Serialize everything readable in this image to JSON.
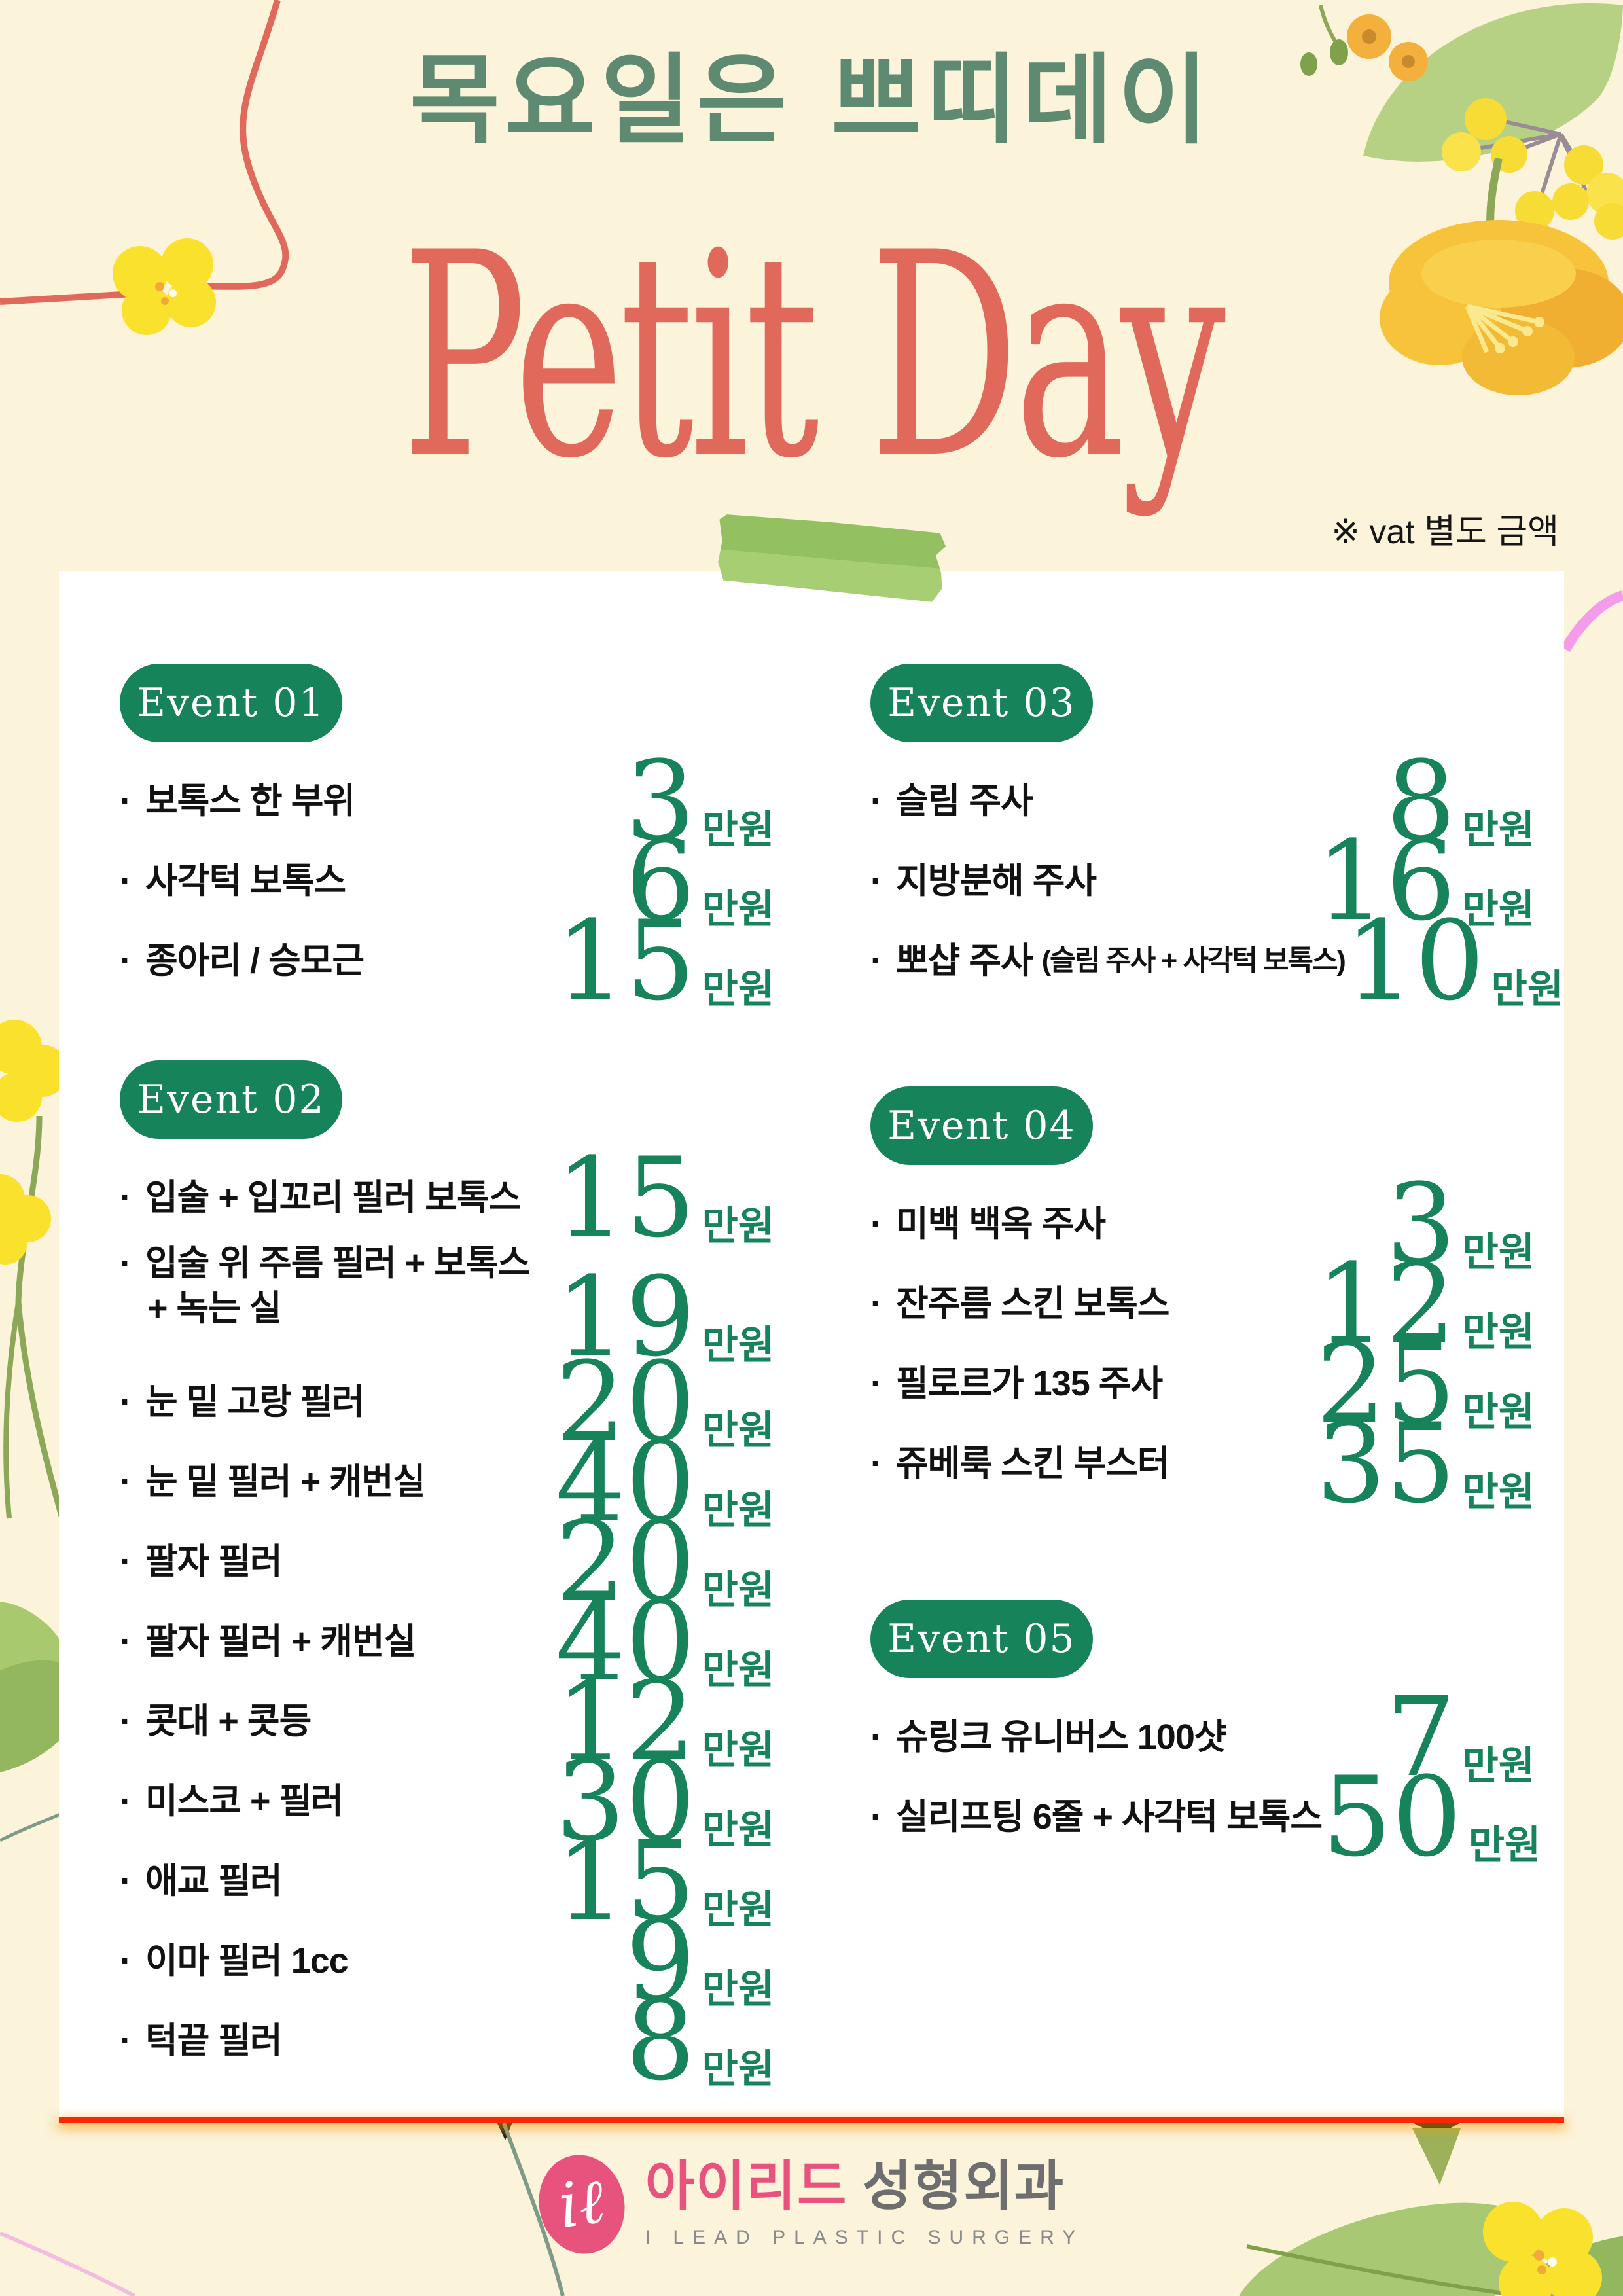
{
  "poster": {
    "title_kr": "목요일은 쁘띠데이",
    "title_en": "Petit Day",
    "vat_note": "※ vat 별도 금액",
    "unit": "만원"
  },
  "sections": [
    {
      "id": "event-01",
      "label": "Event 01",
      "column": "left",
      "items": [
        {
          "name": "보톡스 한 부위",
          "price": "3"
        },
        {
          "name": "사각턱 보톡스",
          "price": "6"
        },
        {
          "name": "종아리 / 승모근",
          "price": "15"
        }
      ]
    },
    {
      "id": "event-02",
      "label": "Event 02",
      "column": "left",
      "items": [
        {
          "name": "입술 + 입꼬리 필러 보톡스",
          "price": "15"
        },
        {
          "name": "입술 위 주름 필러 + 보톡스",
          "name2": "+ 녹는 실",
          "price": "19"
        },
        {
          "name": "눈 밑 고랑 필러",
          "price": "20"
        },
        {
          "name": "눈 밑 필러 + 캐번실",
          "price": "40"
        },
        {
          "name": "팔자 필러",
          "price": "20"
        },
        {
          "name": "팔자 필러 + 캐번실",
          "price": "40"
        },
        {
          "name": "콧대 + 콧등",
          "price": "12"
        },
        {
          "name": "미스코 + 필러",
          "price": "30"
        },
        {
          "name": "애교 필러",
          "price": "15"
        },
        {
          "name": "이마 필러 1cc",
          "price": "9"
        },
        {
          "name": "턱끝 필러",
          "price": "8"
        }
      ]
    },
    {
      "id": "event-03",
      "label": "Event 03",
      "column": "right",
      "items": [
        {
          "name": "슬림 주사",
          "price": "8"
        },
        {
          "name": "지방분해 주사",
          "price": "16"
        },
        {
          "name": "뽀샵 주사",
          "note": "(슬림 주사 + 사각턱 보톡스)",
          "price": "10"
        }
      ]
    },
    {
      "id": "event-04",
      "label": "Event 04",
      "column": "right",
      "items": [
        {
          "name": "미백 백옥 주사",
          "price": "3"
        },
        {
          "name": "잔주름 스킨 보톡스",
          "price": "12"
        },
        {
          "name": "필로르가 135 주사",
          "price": "25"
        },
        {
          "name": "쥬베룩 스킨 부스터",
          "price": "35"
        }
      ]
    },
    {
      "id": "event-05",
      "label": "Event 05",
      "column": "right",
      "items": [
        {
          "name": "슈링크 유니버스 100샷",
          "price": "7"
        },
        {
          "name": "실리프팅 6줄 + 사각턱 보톡스",
          "price": "50"
        }
      ]
    }
  ],
  "footer": {
    "mark_text": "iℓ",
    "clinic_name_pink": "아이리드",
    "clinic_name_gray": "성형외과",
    "tagline": "I LEAD PLASTIC SURGERY"
  },
  "colors": {
    "cream": "#FBF3DA",
    "green": "#17835A",
    "title-green": "#5D8A70",
    "coral": "#E0695B",
    "pink": "#E8537E",
    "red-line": "#FF2602",
    "tape1": "#8FBE5B",
    "tape2": "#A5CC6E",
    "flower-yellow": "#F9E12C",
    "flower-orange": "#F6C33B",
    "leaf": "#B6D183",
    "leaf2": "#93B75E",
    "stem": "#8BA757",
    "sage": "#7E9B88",
    "berry": "#F6DC35",
    "berry-stem": "#9A8C94",
    "pink-arc": "#F49BEA",
    "pink-thin": "#F3BCDF"
  }
}
